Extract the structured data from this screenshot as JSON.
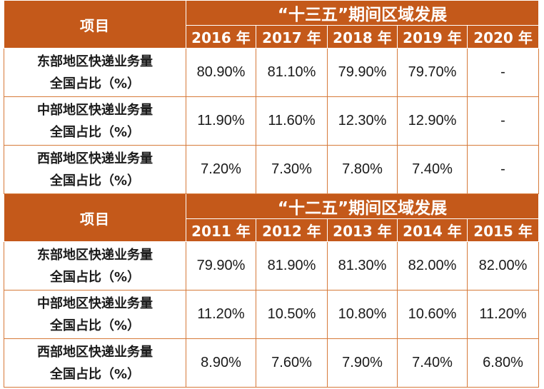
{
  "sections": [
    {
      "item_header": "项目",
      "period_title": "“十三五”期间区域发展",
      "years": [
        "2016 年",
        "2017 年",
        "2018 年",
        "2019 年",
        "2020 年"
      ],
      "rows": [
        {
          "label_line1": "东部地区快递业务量",
          "label_line2": "全国占比（%）",
          "values": [
            "80.90%",
            "81.10%",
            "79.90%",
            "79.70%",
            "-"
          ]
        },
        {
          "label_line1": "中部地区快递业务量",
          "label_line2": "全国占比（%）",
          "values": [
            "11.90%",
            "11.60%",
            "12.30%",
            "12.90%",
            "-"
          ]
        },
        {
          "label_line1": "西部地区快递业务量",
          "label_line2": "全国占比（%）",
          "values": [
            "7.20%",
            "7.30%",
            "7.80%",
            "7.40%",
            "-"
          ]
        }
      ]
    },
    {
      "item_header": "项目",
      "period_title": "“十二五”期间区域发展",
      "years": [
        "2011 年",
        "2012 年",
        "2013 年",
        "2014 年",
        "2015 年"
      ],
      "rows": [
        {
          "label_line1": "东部地区快递业务量",
          "label_line2": "全国占比（%）",
          "values": [
            "79.90%",
            "81.90%",
            "81.30%",
            "82.00%",
            "82.00%"
          ]
        },
        {
          "label_line1": "中部地区快递业务量",
          "label_line2": "全国占比（%）",
          "values": [
            "11.20%",
            "10.50%",
            "10.80%",
            "10.60%",
            "11.20%"
          ]
        },
        {
          "label_line1": "西部地区快递业务量",
          "label_line2": "全国占比（%）",
          "values": [
            "8.90%",
            "7.60%",
            "7.90%",
            "7.40%",
            "6.80%"
          ]
        }
      ]
    }
  ],
  "colors": {
    "header_bg": "#c4591a",
    "border": "#d67a3a",
    "header_text": "#ffffff"
  }
}
